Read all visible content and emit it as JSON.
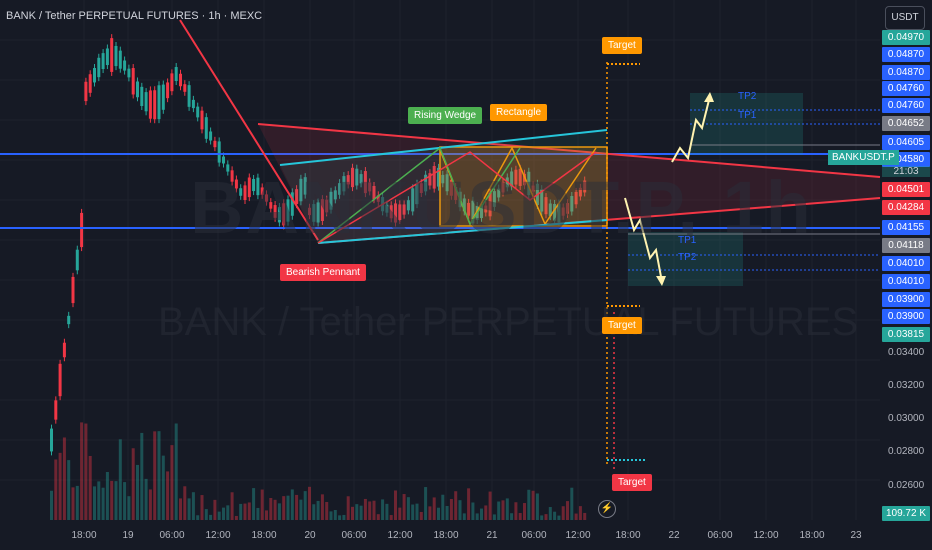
{
  "header": {
    "title": "BANK / Tether PERPETUAL FUTURES · 1h · MEXC",
    "currency": "USDT"
  },
  "watermark": {
    "symbol": "BANKUSDT.P, 1h",
    "name": "BANK / Tether PERPETUAL FUTURES"
  },
  "price_axis": {
    "ticks": [
      "0.03400",
      "0.03200",
      "0.03000",
      "0.02800",
      "0.02600"
    ],
    "tags": [
      {
        "label": "0.04970",
        "color": "#26a69a"
      },
      {
        "label": "0.04870",
        "color": "#2962ff"
      },
      {
        "label": "0.04870",
        "color": "#2962ff"
      },
      {
        "label": "0.04760",
        "color": "#2962ff"
      },
      {
        "label": "0.04760",
        "color": "#2962ff"
      },
      {
        "label": "0.04652",
        "color": "#787b86"
      },
      {
        "label": "0.04605",
        "color": "#2962ff"
      },
      {
        "label": "0.04580",
        "color": "#2962ff"
      },
      {
        "label": "0.04501",
        "color": "#f23645"
      },
      {
        "label": "0.04284",
        "color": "#f23645"
      },
      {
        "label": "0.04155",
        "color": "#2962ff"
      },
      {
        "label": "0.04118",
        "color": "#787b86"
      },
      {
        "label": "0.04010",
        "color": "#2962ff"
      },
      {
        "label": "0.04010",
        "color": "#2962ff"
      },
      {
        "label": "0.03900",
        "color": "#2962ff"
      },
      {
        "label": "0.03900",
        "color": "#2962ff"
      },
      {
        "label": "0.03815",
        "color": "#26a69a"
      }
    ],
    "volume_tag": "109.72 K",
    "symbol_tag": "BANKUSDT.P",
    "countdown": "21:03"
  },
  "time_axis": [
    "18:00",
    "19",
    "06:00",
    "12:00",
    "18:00",
    "20",
    "06:00",
    "12:00",
    "18:00",
    "21",
    "06:00",
    "12:00",
    "18:00",
    "22",
    "06:00",
    "12:00",
    "18:00",
    "23"
  ],
  "annotations": {
    "rising_wedge": "Rising Wedge",
    "rectangle": "Rectangle",
    "bearish_pennant": "Bearish Pennant",
    "target": "Target",
    "tp1": "TP1",
    "tp2": "TP2"
  },
  "colors": {
    "up": "#26a69a",
    "down": "#f23645",
    "accent": "#2962ff",
    "orange": "#ff9800"
  }
}
